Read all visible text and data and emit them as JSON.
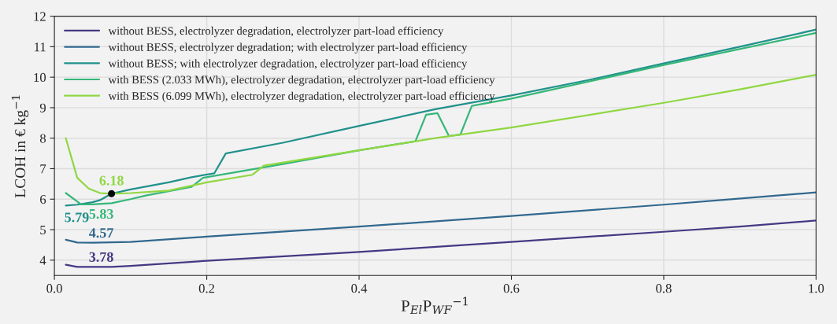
{
  "chart_data": {
    "type": "line",
    "xlabel": "P$_{El}$P$_{WF}$$^{−1}$",
    "ylabel": "LCOH in € kg$^{−1}$",
    "xlim": [
      0.0,
      1.0
    ],
    "ylim": [
      3.5,
      12
    ],
    "xticks": [
      {
        "value": 0,
        "label": "0.0"
      },
      0.2,
      0.4,
      0.6,
      0.8,
      {
        "value": 1,
        "label": "1.0"
      }
    ],
    "yticks": [
      4,
      5,
      6,
      7,
      8,
      9,
      10,
      11,
      12
    ],
    "grid": true,
    "legend": "top left",
    "series": [
      {
        "name": "without BESS, electrolyzer degradation, electrolyzer part-load efficiency",
        "color": "#443983",
        "x": [
          0.015,
          0.03,
          0.05,
          0.075,
          0.1,
          0.2,
          0.4,
          0.6,
          0.8,
          0.9,
          1.0
        ],
        "values": [
          3.85,
          3.78,
          3.78,
          3.78,
          3.81,
          3.98,
          4.27,
          4.6,
          4.93,
          5.1,
          5.3
        ]
      },
      {
        "name": "without BESS, electrolyzer degradation; with electrolyzer part-load efficiency",
        "color": "#31688e",
        "x": [
          0.015,
          0.03,
          0.05,
          0.1,
          0.2,
          0.4,
          0.6,
          0.8,
          1.0
        ],
        "values": [
          4.67,
          4.58,
          4.57,
          4.6,
          4.77,
          5.1,
          5.45,
          5.82,
          6.22
        ]
      },
      {
        "name": "without BESS; with electrolyzer degradation, electrolyzer part-load efficiency",
        "color": "#21918c",
        "x": [
          0.015,
          0.03,
          0.05,
          0.06,
          0.075,
          0.1,
          0.15,
          0.18,
          0.21,
          0.225,
          0.3,
          0.4,
          0.5,
          0.6,
          0.7,
          0.8,
          0.9,
          1.0
        ],
        "values": [
          5.79,
          5.82,
          5.9,
          5.97,
          6.18,
          6.32,
          6.55,
          6.72,
          6.85,
          7.5,
          7.85,
          8.4,
          8.95,
          9.4,
          9.9,
          10.45,
          11.0,
          11.56
        ]
      },
      {
        "name": "with BESS (2.033 MWh), electrolyzer degradation, electrolyzer part-load efficiency",
        "color": "#35b779",
        "x": [
          0.015,
          0.035,
          0.05,
          0.075,
          0.1,
          0.12,
          0.18,
          0.195,
          0.3,
          0.4,
          0.474,
          0.488,
          0.503,
          0.518,
          0.533,
          0.548,
          0.6,
          0.8,
          1.0
        ],
        "values": [
          6.2,
          5.83,
          5.83,
          5.87,
          6.0,
          6.12,
          6.4,
          6.7,
          7.15,
          7.6,
          7.9,
          8.77,
          8.82,
          8.07,
          8.12,
          9.06,
          9.3,
          10.4,
          11.45
        ]
      },
      {
        "name": "with BESS (6.099 MWh), electrolyzer degradation, electrolyzer part-load efficiency",
        "color": "#90d743",
        "x": [
          0.015,
          0.03,
          0.045,
          0.06,
          0.075,
          0.1,
          0.15,
          0.2,
          0.26,
          0.275,
          0.4,
          0.5,
          0.6,
          0.8,
          0.9,
          1.0
        ],
        "values": [
          8.0,
          6.7,
          6.35,
          6.2,
          6.18,
          6.2,
          6.28,
          6.55,
          6.8,
          7.1,
          7.6,
          8.0,
          8.35,
          9.16,
          9.6,
          10.08
        ]
      },
      {
        "type": "scatter",
        "color": "#000000",
        "marker": "circle",
        "x": [
          0.075
        ],
        "values": [
          6.18
        ]
      }
    ],
    "annotations": [
      {
        "text": "3.78",
        "x": 0.05,
        "y": 3.78
      },
      {
        "text": "4.57",
        "x": 0.05,
        "y": 4.57
      },
      {
        "text": "5.79",
        "x": 0.015,
        "y": 5.79
      },
      {
        "text": "5.83",
        "x": 0.04,
        "y": 5.83
      },
      {
        "text": "6.18",
        "x": 0.075,
        "y": 6.18
      }
    ]
  }
}
